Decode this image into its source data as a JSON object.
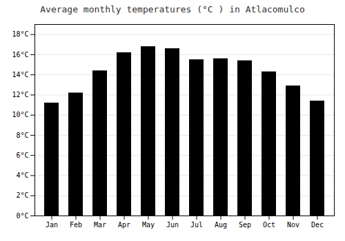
{
  "chart_data": {
    "type": "bar",
    "title": "Average monthly temperatures (°C ) in Atlacomulco",
    "categories": [
      "Jan",
      "Feb",
      "Mar",
      "Apr",
      "May",
      "Jun",
      "Jul",
      "Aug",
      "Sep",
      "Oct",
      "Nov",
      "Dec"
    ],
    "values": [
      11.2,
      12.2,
      14.4,
      16.2,
      16.8,
      16.6,
      15.5,
      15.6,
      15.4,
      14.3,
      12.9,
      11.4
    ],
    "ylim": [
      0,
      19
    ],
    "yticks": [
      {
        "value": 0,
        "label": "0°C"
      },
      {
        "value": 2,
        "label": "2°C"
      },
      {
        "value": 4,
        "label": "4°C"
      },
      {
        "value": 6,
        "label": "6°C"
      },
      {
        "value": 8,
        "label": "8°C"
      },
      {
        "value": 10,
        "label": "10°C"
      },
      {
        "value": 12,
        "label": "12°C"
      },
      {
        "value": 14,
        "label": "14°C"
      },
      {
        "value": 16,
        "label": "16°C"
      },
      {
        "value": 18,
        "label": "18°C"
      }
    ],
    "grid": true
  }
}
